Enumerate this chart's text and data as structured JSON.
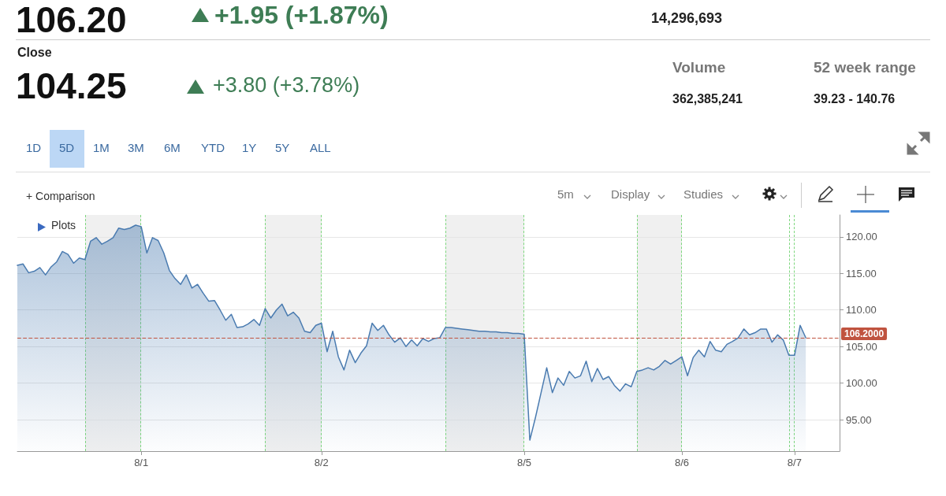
{
  "chart_data": {
    "type": "area",
    "annotations": [
      "106.20",
      "+1.95 (+1.87%)",
      "14,296,693",
      "Close",
      "104.25",
      "+3.80 (+3.78%)",
      "Volume",
      "362,385,241",
      "52 week range",
      "39.23 - 140.76",
      "1D",
      "5D",
      "1M",
      "3M",
      "6M",
      "YTD",
      "1Y",
      "5Y",
      "ALL",
      "+ Comparison",
      "5m",
      "Display",
      "Studies",
      "Plots"
    ],
    "categories": [
      null,
      null,
      null,
      null,
      null,
      null,
      null,
      null,
      null,
      null,
      null,
      null,
      null,
      null,
      null,
      null,
      null,
      null,
      null,
      null,
      null,
      null,
      "8/1",
      null,
      null,
      null,
      null,
      null,
      null,
      null,
      null,
      null,
      null,
      null,
      null,
      null,
      null,
      null,
      null,
      null,
      null,
      null,
      null,
      null,
      null,
      null,
      null,
      null,
      null,
      null,
      null,
      null,
      null,
      null,
      "8/2",
      null,
      null,
      null,
      null,
      null,
      null,
      null,
      null,
      null,
      null,
      null,
      null,
      null,
      null,
      null,
      null,
      null,
      null,
      null,
      null,
      null,
      null,
      null,
      null,
      null,
      null,
      null,
      null,
      null,
      null,
      null,
      null,
      null,
      null,
      null,
      "8/5",
      null,
      null,
      null,
      null,
      null,
      null,
      null,
      null,
      null,
      null,
      null,
      null,
      null,
      null,
      null,
      null,
      null,
      null,
      null,
      null,
      null,
      null,
      null,
      null,
      null,
      null,
      null,
      "8/6",
      null,
      null,
      null,
      null,
      null,
      null,
      null,
      null,
      null,
      null,
      null,
      null,
      null,
      null,
      null,
      null,
      null,
      null,
      null,
      "8/7",
      null,
      null,
      null,
      null,
      null,
      null,
      null,
      null
    ],
    "series": [
      {
        "color": "#4a7bb0",
        "values": [
          116.1,
          116.3,
          115.1,
          115.3,
          115.8,
          114.8,
          115.9,
          116.6,
          118.0,
          117.6,
          116.4,
          117.1,
          116.9,
          119.4,
          119.9,
          119.0,
          119.4,
          119.9,
          121.2,
          121.0,
          121.2,
          121.6,
          121.4,
          117.8,
          119.9,
          119.5,
          117.8,
          115.4,
          114.3,
          113.5,
          114.8,
          113.0,
          113.5,
          112.3,
          111.2,
          111.3,
          110.0,
          108.6,
          109.4,
          107.6,
          107.7,
          108.1,
          108.7,
          107.9,
          110.2,
          108.9,
          110.0,
          110.8,
          109.2,
          109.7,
          108.9,
          107.1,
          106.9,
          107.9,
          108.2,
          104.3,
          107.1,
          103.6,
          101.8,
          104.5,
          102.8,
          104.1,
          105.1,
          108.2,
          107.2,
          107.9,
          106.6,
          105.6,
          106.2,
          105.0,
          105.9,
          105.1,
          106.1,
          105.7,
          106.1,
          106.2,
          107.6,
          107.6,
          107.5,
          107.4,
          107.3,
          107.2,
          107.1,
          107.1,
          107.0,
          107.0,
          106.9,
          106.9,
          106.8,
          106.8,
          106.7,
          92.2,
          95.3,
          98.7,
          102.1,
          98.7,
          100.7,
          99.7,
          101.6,
          100.7,
          101.0,
          103.0,
          100.2,
          102.0,
          100.5,
          100.9,
          99.7,
          98.9,
          99.9,
          99.5,
          101.6,
          101.8,
          102.1,
          101.8,
          102.3,
          103.1,
          102.6,
          103.1,
          103.6,
          101.0,
          103.5,
          104.5,
          103.6,
          105.7,
          104.5,
          104.3,
          105.3,
          105.7,
          106.2,
          107.4,
          106.6,
          106.9,
          107.4,
          107.4,
          105.6,
          106.6,
          105.9,
          103.8,
          103.8,
          107.9,
          106.2,
          null,
          null,
          null,
          null,
          null,
          null
        ]
      }
    ],
    "ylim": [
      90.7,
      123
    ],
    "yticks": [
      {
        "value": 95,
        "label": "95.00"
      },
      {
        "value": 100,
        "label": "100.00"
      },
      {
        "value": 105,
        "label": "105.00"
      },
      {
        "value": 110,
        "label": "110.00"
      },
      {
        "value": 115,
        "label": "115.00"
      },
      {
        "value": 120,
        "label": "120.00"
      }
    ],
    "grid": "y",
    "marker": "none",
    "line_style": "solid",
    "ref_lines": [
      {
        "axis": "y",
        "value": 106.2,
        "label": "106.2000",
        "color": "#c0533f",
        "line_style": "dashed"
      }
    ]
  }
}
